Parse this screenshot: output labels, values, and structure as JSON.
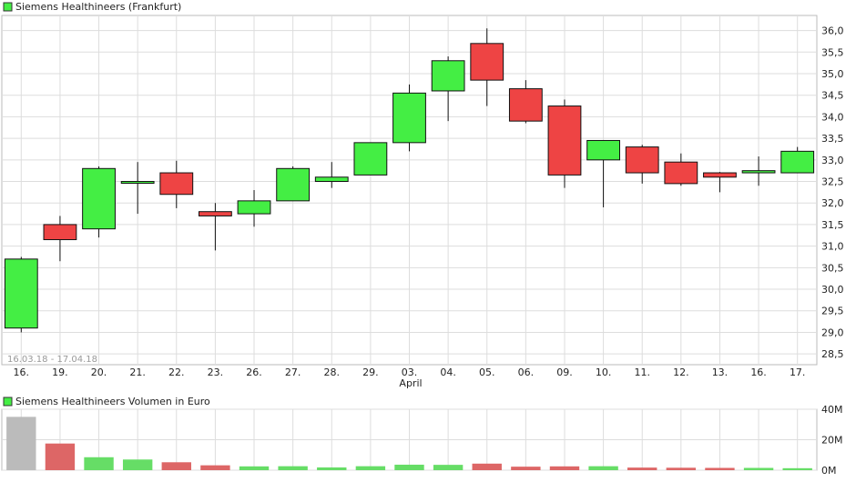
{
  "price_chart": {
    "legend_label": "Siemens Healthineers (Frankfurt)",
    "legend_color": "#44ee44",
    "date_range": "16.03.18 - 17.04.18",
    "month_label": "April"
  },
  "volume_chart": {
    "legend_label": "Siemens Healthineers Volumen in Euro",
    "legend_color": "#44ee44"
  },
  "colors": {
    "up": "#44ee44",
    "down": "#ee4444",
    "volume_up": "#66dd66",
    "volume_down": "#dd6666",
    "volume_first": "#bbbbbb",
    "grid": "#dddddd"
  },
  "chart_data": [
    {
      "type": "candlestick",
      "title": "Siemens Healthineers (Frankfurt)",
      "ylim": [
        28.25,
        36.35
      ],
      "y_ticks": [
        "28,5",
        "29,0",
        "29,5",
        "30,0",
        "30,5",
        "31,0",
        "31,5",
        "32,0",
        "32,5",
        "33,0",
        "33,5",
        "34,0",
        "34,5",
        "35,0",
        "35,5",
        "36,0"
      ],
      "categories": [
        "16.",
        "19.",
        "20.",
        "21.",
        "22.",
        "23.",
        "26.",
        "27.",
        "28.",
        "29.",
        "03.",
        "04.",
        "05.",
        "06.",
        "09.",
        "10.",
        "11.",
        "12.",
        "13.",
        "16.",
        "17."
      ],
      "open": [
        29.1,
        31.5,
        31.4,
        32.5,
        32.7,
        31.8,
        31.75,
        32.05,
        32.5,
        32.65,
        33.4,
        34.6,
        35.7,
        34.65,
        34.25,
        33.0,
        33.3,
        32.95,
        32.7,
        32.7,
        32.7
      ],
      "high": [
        30.75,
        31.7,
        32.85,
        32.95,
        32.98,
        32.0,
        32.3,
        32.85,
        32.95,
        33.4,
        34.75,
        35.4,
        36.05,
        34.85,
        34.4,
        33.45,
        33.35,
        33.15,
        32.72,
        33.08,
        33.3
      ],
      "low": [
        29.0,
        30.65,
        31.2,
        31.75,
        31.88,
        30.9,
        31.45,
        32.05,
        32.35,
        32.65,
        33.2,
        33.9,
        34.25,
        33.85,
        32.35,
        31.9,
        32.45,
        32.4,
        32.25,
        32.4,
        32.7
      ],
      "close": [
        30.7,
        31.15,
        32.8,
        32.5,
        32.2,
        31.7,
        32.05,
        32.8,
        32.6,
        33.4,
        34.55,
        35.3,
        34.85,
        33.9,
        32.65,
        33.45,
        32.7,
        32.45,
        32.6,
        32.75,
        33.2
      ],
      "x_label": "April"
    },
    {
      "type": "bar",
      "title": "Siemens Healthineers Volumen in Euro",
      "ylim": [
        0,
        40
      ],
      "y_ticks": [
        "0M",
        "20M",
        "40M"
      ],
      "categories": [
        "16.",
        "19.",
        "20.",
        "21.",
        "22.",
        "23.",
        "26.",
        "27.",
        "28.",
        "29.",
        "03.",
        "04.",
        "05.",
        "06.",
        "09.",
        "10.",
        "11.",
        "12.",
        "13.",
        "16.",
        "17."
      ],
      "values": [
        35,
        17.5,
        8.5,
        7,
        5.2,
        3.2,
        2.5,
        2.6,
        1.8,
        2.6,
        3.6,
        3.5,
        4.3,
        2.3,
        2.5,
        2.6,
        1.7,
        1.6,
        1.5,
        1.5,
        1.3
      ]
    }
  ]
}
